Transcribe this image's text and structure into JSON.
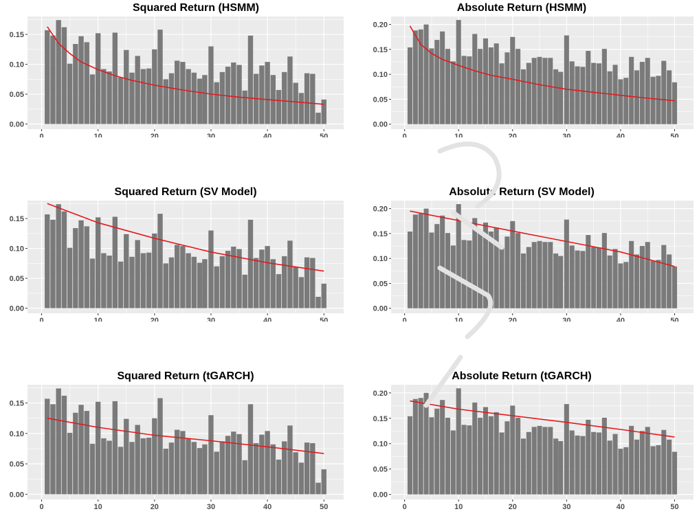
{
  "colors": {
    "panel_bg": "#ebebeb",
    "grid": "#ffffff",
    "bar": "#7a7a7a",
    "line": "#e41a1c",
    "tick_text": "#4d4d4d",
    "watermark": "#cfcfcf"
  },
  "chart_data": [
    {
      "type": "bar",
      "title": "Squared Return (HSMM)",
      "xlabel": "",
      "ylabel": "",
      "xlim": [
        -2.5,
        53.5
      ],
      "ylim": [
        -0.0086,
        0.18
      ],
      "x_ticks": [
        0,
        10,
        20,
        30,
        40,
        50
      ],
      "x_tick_labels": [
        "0",
        "10",
        "20",
        "30",
        "40",
        "50"
      ],
      "y_ticks": [
        0,
        0.05,
        0.1,
        0.15
      ],
      "y_tick_labels": [
        "0.00",
        "0.05",
        "0.10",
        "0.15"
      ],
      "grid": true,
      "x": [
        1,
        2,
        3,
        4,
        5,
        6,
        7,
        8,
        9,
        10,
        11,
        12,
        13,
        14,
        15,
        16,
        17,
        18,
        19,
        20,
        21,
        22,
        23,
        24,
        25,
        26,
        27,
        28,
        28.9,
        30,
        31,
        32,
        33,
        34,
        35,
        36,
        37,
        38,
        39,
        40,
        41,
        42,
        43,
        44,
        45,
        46,
        47,
        48,
        49,
        50
      ],
      "values": [
        0.157,
        0.148,
        0.174,
        0.162,
        0.101,
        0.134,
        0.147,
        0.137,
        0.083,
        0.152,
        0.092,
        0.088,
        0.153,
        0.078,
        0.124,
        0.086,
        0.114,
        0.092,
        0.093,
        0.125,
        0.158,
        0.075,
        0.085,
        0.106,
        0.104,
        0.092,
        0.086,
        0.076,
        0.082,
        0.13,
        0.07,
        0.087,
        0.096,
        0.103,
        0.099,
        0.056,
        0.148,
        0.084,
        0.098,
        0.104,
        0.082,
        0.057,
        0.087,
        0.113,
        0.069,
        0.052,
        0.085,
        0.084,
        0.019,
        0.041
      ],
      "line": {
        "x": [
          1,
          3,
          5,
          7,
          10,
          13,
          16,
          20,
          25,
          30,
          35,
          40,
          45,
          50
        ],
        "y": [
          0.163,
          0.135,
          0.118,
          0.104,
          0.091,
          0.081,
          0.073,
          0.065,
          0.057,
          0.05,
          0.045,
          0.041,
          0.037,
          0.033
        ]
      }
    },
    {
      "type": "bar",
      "title": "Absolute Return (HSMM)",
      "xlabel": "",
      "ylabel": "",
      "xlim": [
        -2.5,
        53.5
      ],
      "ylim": [
        -0.01,
        0.216
      ],
      "x_ticks": [
        0,
        10,
        20,
        30,
        40,
        50
      ],
      "x_tick_labels": [
        "0",
        "10",
        "20",
        "30",
        "40",
        "50"
      ],
      "y_ticks": [
        0,
        0.05,
        0.1,
        0.15,
        0.2
      ],
      "y_tick_labels": [
        "0.00",
        "0.05",
        "0.10",
        "0.15",
        "0.20"
      ],
      "grid": true,
      "x": [
        1,
        2,
        3,
        4,
        5,
        6,
        7,
        8,
        9,
        10,
        11,
        12,
        13,
        14,
        15,
        16,
        17,
        18,
        19,
        20,
        21,
        22,
        23,
        24,
        25,
        26,
        27,
        28,
        28.9,
        30,
        31,
        32,
        33,
        34,
        35,
        36,
        37,
        38,
        39,
        40,
        41,
        42,
        43,
        44,
        45,
        46,
        47,
        48,
        49,
        50
      ],
      "values": [
        0.154,
        0.188,
        0.19,
        0.2,
        0.152,
        0.169,
        0.186,
        0.151,
        0.126,
        0.209,
        0.137,
        0.136,
        0.181,
        0.151,
        0.172,
        0.154,
        0.162,
        0.122,
        0.144,
        0.175,
        0.151,
        0.11,
        0.123,
        0.133,
        0.135,
        0.133,
        0.133,
        0.11,
        0.105,
        0.178,
        0.126,
        0.116,
        0.115,
        0.147,
        0.123,
        0.122,
        0.151,
        0.106,
        0.119,
        0.09,
        0.093,
        0.135,
        0.108,
        0.125,
        0.133,
        0.095,
        0.097,
        0.127,
        0.108,
        0.084
      ],
      "line": {
        "x": [
          1,
          3,
          5,
          7,
          10,
          13,
          16,
          20,
          25,
          30,
          35,
          40,
          45,
          50
        ],
        "y": [
          0.197,
          0.16,
          0.142,
          0.13,
          0.118,
          0.107,
          0.098,
          0.09,
          0.079,
          0.07,
          0.064,
          0.058,
          0.052,
          0.047
        ]
      }
    },
    {
      "type": "bar",
      "title": "Squared Return (SV Model)",
      "xlabel": "",
      "ylabel": "",
      "xlim": [
        -2.5,
        53.5
      ],
      "ylim": [
        -0.0086,
        0.18
      ],
      "x_ticks": [
        0,
        10,
        20,
        30,
        40,
        50
      ],
      "x_tick_labels": [
        "0",
        "10",
        "20",
        "30",
        "40",
        "50"
      ],
      "y_ticks": [
        0,
        0.05,
        0.1,
        0.15
      ],
      "y_tick_labels": [
        "0.00",
        "0.05",
        "0.10",
        "0.15"
      ],
      "grid": true,
      "x": [
        1,
        2,
        3,
        4,
        5,
        6,
        7,
        8,
        9,
        10,
        11,
        12,
        13,
        14,
        15,
        16,
        17,
        18,
        19,
        20,
        21,
        22,
        23,
        24,
        25,
        26,
        27,
        28,
        28.9,
        30,
        31,
        32,
        33,
        34,
        35,
        36,
        37,
        38,
        39,
        40,
        41,
        42,
        43,
        44,
        45,
        46,
        47,
        48,
        49,
        50
      ],
      "values": [
        0.157,
        0.148,
        0.174,
        0.162,
        0.101,
        0.134,
        0.147,
        0.137,
        0.083,
        0.152,
        0.092,
        0.088,
        0.153,
        0.078,
        0.124,
        0.086,
        0.114,
        0.092,
        0.093,
        0.125,
        0.158,
        0.075,
        0.085,
        0.106,
        0.104,
        0.092,
        0.086,
        0.076,
        0.082,
        0.13,
        0.07,
        0.087,
        0.096,
        0.103,
        0.099,
        0.056,
        0.148,
        0.084,
        0.098,
        0.104,
        0.082,
        0.057,
        0.087,
        0.113,
        0.069,
        0.052,
        0.085,
        0.084,
        0.019,
        0.041
      ],
      "line": {
        "x": [
          1,
          10,
          20,
          30,
          40,
          50
        ],
        "y": [
          0.175,
          0.143,
          0.117,
          0.094,
          0.076,
          0.062
        ]
      }
    },
    {
      "type": "bar",
      "title": "Absolute Return (SV Model)",
      "xlabel": "",
      "ylabel": "",
      "xlim": [
        -2.5,
        53.5
      ],
      "ylim": [
        -0.01,
        0.216
      ],
      "x_ticks": [
        0,
        10,
        20,
        30,
        40,
        50
      ],
      "x_tick_labels": [
        "0",
        "10",
        "20",
        "30",
        "40",
        "50"
      ],
      "y_ticks": [
        0,
        0.05,
        0.1,
        0.15,
        0.2
      ],
      "y_tick_labels": [
        "0.00",
        "0.05",
        "0.10",
        "0.15",
        "0.20"
      ],
      "grid": true,
      "x": [
        1,
        2,
        3,
        4,
        5,
        6,
        7,
        8,
        9,
        10,
        11,
        12,
        13,
        14,
        15,
        16,
        17,
        18,
        19,
        20,
        21,
        22,
        23,
        24,
        25,
        26,
        27,
        28,
        28.9,
        30,
        31,
        32,
        33,
        34,
        35,
        36,
        37,
        38,
        39,
        40,
        41,
        42,
        43,
        44,
        45,
        46,
        47,
        48,
        49,
        50
      ],
      "values": [
        0.154,
        0.188,
        0.19,
        0.2,
        0.152,
        0.169,
        0.186,
        0.151,
        0.126,
        0.209,
        0.137,
        0.136,
        0.181,
        0.151,
        0.172,
        0.154,
        0.162,
        0.122,
        0.144,
        0.175,
        0.151,
        0.11,
        0.123,
        0.133,
        0.135,
        0.133,
        0.133,
        0.11,
        0.105,
        0.178,
        0.126,
        0.116,
        0.115,
        0.147,
        0.123,
        0.122,
        0.151,
        0.106,
        0.119,
        0.09,
        0.093,
        0.135,
        0.108,
        0.125,
        0.133,
        0.095,
        0.097,
        0.127,
        0.108,
        0.084
      ],
      "line": {
        "x": [
          1,
          10,
          20,
          30,
          40,
          50
        ],
        "y": [
          0.195,
          0.176,
          0.155,
          0.134,
          0.113,
          0.084
        ]
      }
    },
    {
      "type": "bar",
      "title": "Squared Return (tGARCH)",
      "xlabel": "",
      "ylabel": "",
      "xlim": [
        -2.5,
        53.5
      ],
      "ylim": [
        -0.0086,
        0.18
      ],
      "x_ticks": [
        0,
        10,
        20,
        30,
        40,
        50
      ],
      "x_tick_labels": [
        "0",
        "10",
        "20",
        "30",
        "40",
        "50"
      ],
      "y_ticks": [
        0,
        0.05,
        0.1,
        0.15
      ],
      "y_tick_labels": [
        "0.00",
        "0.05",
        "0.10",
        "0.15"
      ],
      "grid": true,
      "x": [
        1,
        2,
        3,
        4,
        5,
        6,
        7,
        8,
        9,
        10,
        11,
        12,
        13,
        14,
        15,
        16,
        17,
        18,
        19,
        20,
        21,
        22,
        23,
        24,
        25,
        26,
        27,
        28,
        28.9,
        30,
        31,
        32,
        33,
        34,
        35,
        36,
        37,
        38,
        39,
        40,
        41,
        42,
        43,
        44,
        45,
        46,
        47,
        48,
        49,
        50
      ],
      "values": [
        0.157,
        0.148,
        0.174,
        0.162,
        0.101,
        0.134,
        0.147,
        0.137,
        0.083,
        0.152,
        0.092,
        0.088,
        0.153,
        0.078,
        0.124,
        0.086,
        0.114,
        0.092,
        0.093,
        0.125,
        0.158,
        0.075,
        0.085,
        0.106,
        0.104,
        0.092,
        0.086,
        0.076,
        0.082,
        0.13,
        0.07,
        0.087,
        0.096,
        0.103,
        0.099,
        0.056,
        0.148,
        0.084,
        0.098,
        0.104,
        0.082,
        0.057,
        0.087,
        0.113,
        0.069,
        0.052,
        0.085,
        0.084,
        0.019,
        0.041
      ],
      "line": {
        "x": [
          1,
          10,
          20,
          30,
          40,
          50
        ],
        "y": [
          0.125,
          0.11,
          0.097,
          0.088,
          0.078,
          0.067
        ]
      }
    },
    {
      "type": "bar",
      "title": "Absolute Return (tGARCH)",
      "xlabel": "",
      "ylabel": "",
      "xlim": [
        -2.5,
        53.5
      ],
      "ylim": [
        -0.01,
        0.216
      ],
      "x_ticks": [
        0,
        10,
        20,
        30,
        40,
        50
      ],
      "x_tick_labels": [
        "0",
        "10",
        "20",
        "30",
        "40",
        "50"
      ],
      "y_ticks": [
        0,
        0.05,
        0.1,
        0.15,
        0.2
      ],
      "y_tick_labels": [
        "0.00",
        "0.05",
        "0.10",
        "0.15",
        "0.20"
      ],
      "grid": true,
      "x": [
        1,
        2,
        3,
        4,
        5,
        6,
        7,
        8,
        9,
        10,
        11,
        12,
        13,
        14,
        15,
        16,
        17,
        18,
        19,
        20,
        21,
        22,
        23,
        24,
        25,
        26,
        27,
        28,
        28.9,
        30,
        31,
        32,
        33,
        34,
        35,
        36,
        37,
        38,
        39,
        40,
        41,
        42,
        43,
        44,
        45,
        46,
        47,
        48,
        49,
        50
      ],
      "values": [
        0.154,
        0.188,
        0.19,
        0.2,
        0.152,
        0.169,
        0.186,
        0.151,
        0.126,
        0.209,
        0.137,
        0.136,
        0.181,
        0.151,
        0.172,
        0.154,
        0.162,
        0.122,
        0.144,
        0.175,
        0.151,
        0.11,
        0.123,
        0.133,
        0.135,
        0.133,
        0.133,
        0.11,
        0.105,
        0.178,
        0.126,
        0.116,
        0.115,
        0.147,
        0.123,
        0.122,
        0.151,
        0.106,
        0.119,
        0.09,
        0.093,
        0.135,
        0.108,
        0.125,
        0.133,
        0.095,
        0.097,
        0.127,
        0.108,
        0.084
      ],
      "line": {
        "x": [
          1,
          10,
          20,
          30,
          40,
          50
        ],
        "y": [
          0.184,
          0.168,
          0.155,
          0.142,
          0.128,
          0.113
        ]
      }
    }
  ]
}
